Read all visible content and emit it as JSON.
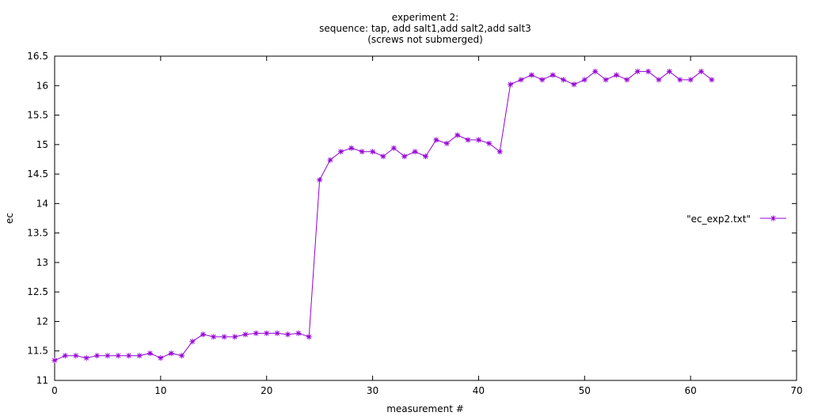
{
  "chart_data": {
    "type": "line",
    "title_lines": [
      "experiment 2:",
      "sequence: tap, add salt1,add salt2,add salt3",
      "(screws not submerged)"
    ],
    "xlabel": "measurement #",
    "ylabel": "ec",
    "xlim": [
      0,
      70
    ],
    "ylim": [
      11,
      16.5
    ],
    "x_ticks": [
      "0",
      "10",
      "20",
      "30",
      "40",
      "50",
      "60",
      "70"
    ],
    "y_ticks": [
      "11",
      "11.5",
      "12",
      "12.5",
      "13",
      "13.5",
      "14",
      "14.5",
      "15",
      "15.5",
      "16",
      "16.5"
    ],
    "grid": false,
    "legend_position": "right",
    "series": [
      {
        "name": "\"ec_exp2.txt\"",
        "color": "#9400d3",
        "marker": "plus",
        "x": [
          0,
          1,
          2,
          3,
          4,
          5,
          6,
          7,
          8,
          9,
          10,
          11,
          12,
          13,
          14,
          15,
          16,
          17,
          18,
          19,
          20,
          21,
          22,
          23,
          24,
          25,
          26,
          27,
          28,
          29,
          30,
          31,
          32,
          33,
          34,
          35,
          36,
          37,
          38,
          39,
          40,
          41,
          42,
          43,
          44,
          45,
          46,
          47,
          48,
          49,
          50,
          51,
          52,
          53,
          54,
          55,
          56,
          57,
          58,
          59,
          60,
          61,
          62
        ],
        "y": [
          11.34,
          11.42,
          11.42,
          11.38,
          11.42,
          11.42,
          11.42,
          11.42,
          11.42,
          11.46,
          11.38,
          11.46,
          11.42,
          11.66,
          11.78,
          11.74,
          11.74,
          11.74,
          11.78,
          11.8,
          11.8,
          11.8,
          11.78,
          11.8,
          11.74,
          14.4,
          14.74,
          14.88,
          14.94,
          14.88,
          14.88,
          14.8,
          14.94,
          14.8,
          14.88,
          14.8,
          15.08,
          15.02,
          15.16,
          15.08,
          15.08,
          15.02,
          14.88,
          16.02,
          16.1,
          16.18,
          16.1,
          16.18,
          16.1,
          16.02,
          16.1,
          16.24,
          16.1,
          16.18,
          16.1,
          16.24,
          16.24,
          16.1,
          16.24,
          16.1,
          16.1,
          16.24,
          16.1
        ]
      }
    ]
  }
}
